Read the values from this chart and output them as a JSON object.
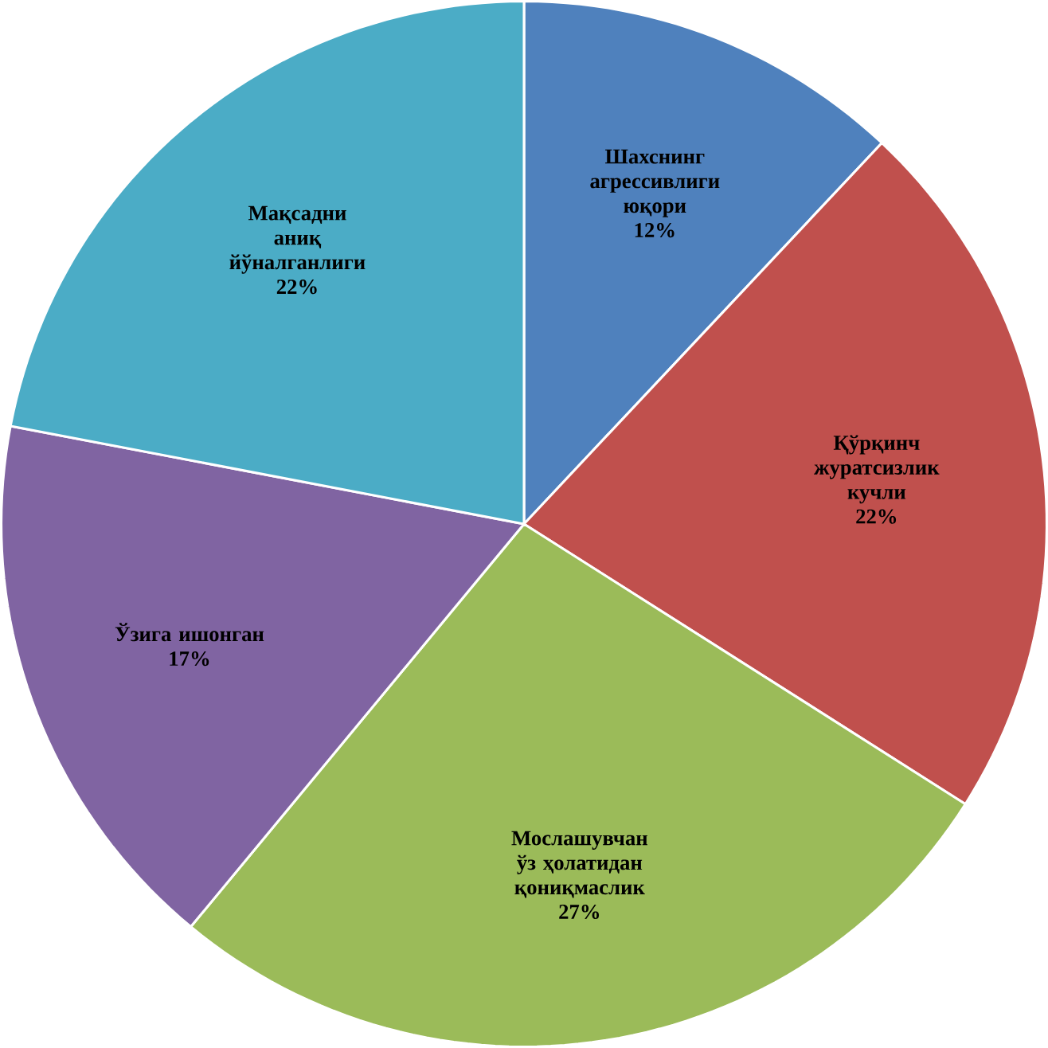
{
  "chart_data": {
    "type": "pie",
    "categories": [
      "Шахснинг агрессивлиги юқори",
      "Қўрқинч журатсизлик кучли",
      "Мослашувчан ўз ҳолатидан қониқмаслик",
      "Ўзига ишонган",
      "Мақсадни аниқ йўналганлиги"
    ],
    "values": [
      12,
      22,
      27,
      17,
      22
    ],
    "value_labels": [
      "12%",
      "22%",
      "27%",
      "17%",
      "22%"
    ],
    "colors": [
      "#4f81bd",
      "#c0504d",
      "#9bbb59",
      "#8064a2",
      "#4bacc6"
    ]
  }
}
